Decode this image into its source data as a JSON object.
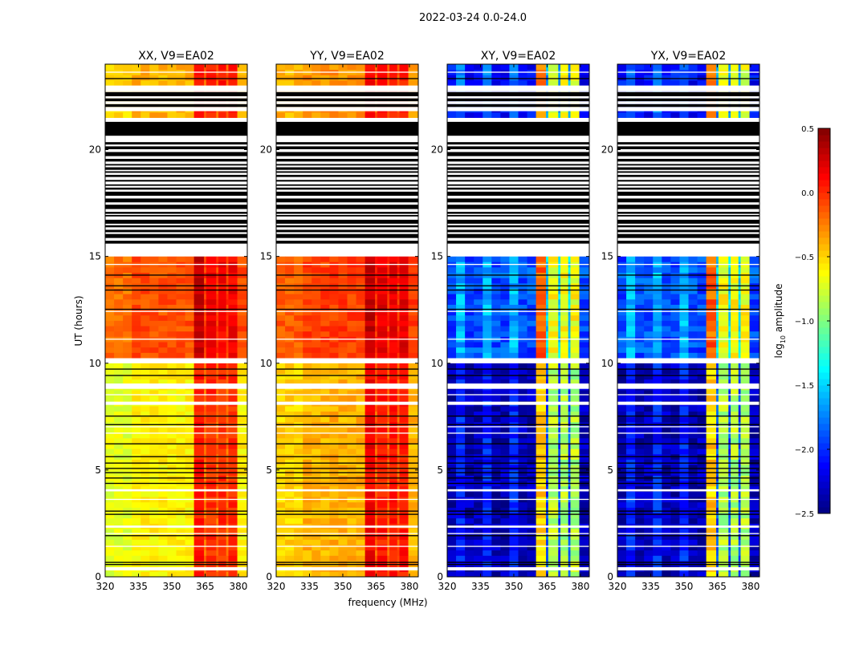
{
  "chart_data": {
    "type": "heatmap",
    "title": "2022-03-24 0.0-24.0",
    "xlabel": "frequency (MHz)",
    "ylabel": "UT (hours)",
    "xlim": [
      320,
      384
    ],
    "ylim": [
      0,
      24
    ],
    "xticks": [
      "320",
      "335",
      "350",
      "365",
      "380"
    ],
    "xtick_values": [
      320,
      335,
      350,
      365,
      380
    ],
    "yticks": [
      "0",
      "5",
      "10",
      "15",
      "20"
    ],
    "ytick_values": [
      0,
      5,
      10,
      15,
      20
    ],
    "colorbar": {
      "label_main": "log",
      "label_sub": "10",
      "label_rest": " amplitude",
      "range": [
        -2.5,
        0.5
      ],
      "ticks": [
        "0.5",
        "0.0",
        "−0.5",
        "−1.0",
        "−1.5",
        "−2.0",
        "−2.5"
      ],
      "tick_values": [
        0.5,
        0.0,
        -0.5,
        -1.0,
        -1.5,
        -2.0,
        -2.5
      ],
      "colormap": "jet"
    },
    "band_channels_mhz": [
      [
        360,
        364.5
      ],
      [
        365.5,
        370
      ],
      [
        371,
        374.5
      ],
      [
        375.5,
        379.5
      ]
    ],
    "flagged_white_hours": [
      [
        0.3,
        0.45
      ],
      [
        2.3,
        2.4
      ],
      [
        4.0,
        4.1
      ],
      [
        8.05,
        8.2
      ],
      [
        8.8,
        9.05
      ],
      [
        10.0,
        10.2
      ],
      [
        15.0,
        15.6
      ],
      [
        20.35,
        20.65
      ],
      [
        21.8,
        22.0
      ],
      [
        22.75,
        23.0
      ]
    ],
    "flagged_black_hours": [
      [
        20.65,
        21.3
      ]
    ],
    "striped_flag_hours": [
      [
        15.6,
        20.35
      ],
      [
        22.0,
        22.75
      ]
    ],
    "black_line_hours": [
      0.55,
      0.65,
      1.9,
      2.9,
      3.05,
      4.35,
      4.6,
      4.85,
      5.05,
      5.3,
      5.6,
      6.2,
      7.1,
      7.5,
      9.4,
      9.7,
      12.5,
      13.4,
      13.6,
      14.1,
      23.3
    ],
    "white_line_hours": [
      1.4,
      2.0,
      3.6,
      6.7,
      7.0,
      8.5,
      11.1,
      12.4,
      14.6,
      23.6
    ],
    "panels": [
      {
        "title": "XX, V9=EA02",
        "levels": [
          {
            "hours": [
              0,
              10.0
            ],
            "background": -0.6,
            "band": 0.0,
            "band_first": 0.05
          },
          {
            "hours": [
              10.2,
              15.0
            ],
            "background": -0.1,
            "band": 0.15,
            "band_first": 0.3
          },
          {
            "hours": [
              21.3,
              24
            ],
            "background": -0.4,
            "band": 0.05,
            "band_first": 0.1
          }
        ]
      },
      {
        "title": "YY, V9=EA02",
        "levels": [
          {
            "hours": [
              0,
              10.0
            ],
            "background": -0.4,
            "band": 0.05,
            "band_first": 0.15
          },
          {
            "hours": [
              10.2,
              15.0
            ],
            "background": -0.05,
            "band": 0.2,
            "band_first": 0.3
          },
          {
            "hours": [
              21.3,
              24
            ],
            "background": -0.3,
            "band": 0.05,
            "band_first": 0.1
          }
        ]
      },
      {
        "title": "XY, V9=EA02",
        "levels": [
          {
            "hours": [
              0,
              10.0
            ],
            "background": -2.35,
            "band": -0.85,
            "band_first": -0.5
          },
          {
            "hours": [
              10.2,
              15.0
            ],
            "background": -1.9,
            "band": -0.65,
            "band_first": -0.15
          },
          {
            "hours": [
              21.3,
              24
            ],
            "background": -2.1,
            "band": -0.7,
            "band_first": -0.3
          }
        ]
      },
      {
        "title": "YX, V9=EA02",
        "levels": [
          {
            "hours": [
              0,
              10.0
            ],
            "background": -2.35,
            "band": -0.85,
            "band_first": -0.5
          },
          {
            "hours": [
              10.2,
              15.0
            ],
            "background": -1.9,
            "band": -0.65,
            "band_first": -0.15
          },
          {
            "hours": [
              21.3,
              24
            ],
            "background": -2.1,
            "band": -0.7,
            "band_first": -0.3
          }
        ]
      }
    ]
  }
}
